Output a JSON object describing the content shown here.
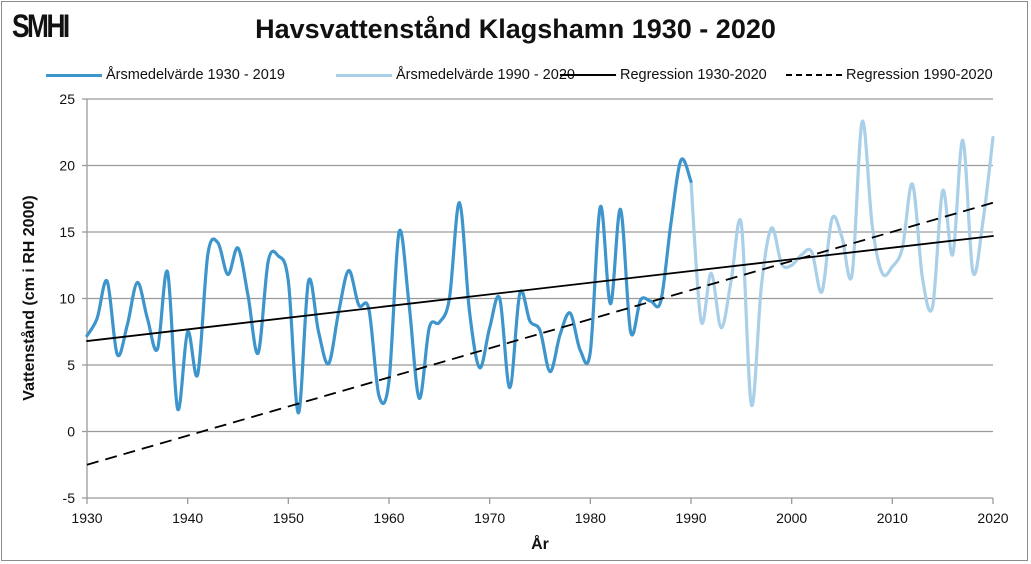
{
  "logo": "SMHI",
  "chart_data": {
    "type": "line",
    "title": "Havsvattenstånd Klagshamn 1930 - 2020",
    "xlabel": "År",
    "ylabel": "Vattenstånd (cm i RH 2000)",
    "xlim": [
      1930,
      2020
    ],
    "ylim": [
      -5,
      25
    ],
    "xticks": [
      1930,
      1940,
      1950,
      1960,
      1970,
      1980,
      1990,
      2000,
      2010,
      2020
    ],
    "yticks": [
      -5,
      0,
      5,
      10,
      15,
      20,
      25
    ],
    "grid": "horizontal",
    "legend_position": "top",
    "series": [
      {
        "name": "Årsmedelvärde 1930 - 2019",
        "color": "#3d95cc",
        "style": "solid",
        "x": [
          1930,
          1931,
          1932,
          1933,
          1934,
          1935,
          1936,
          1937,
          1938,
          1939,
          1940,
          1941,
          1942,
          1943,
          1944,
          1945,
          1946,
          1947,
          1948,
          1949,
          1950,
          1951,
          1952,
          1953,
          1954,
          1955,
          1956,
          1957,
          1958,
          1959,
          1960,
          1961,
          1962,
          1963,
          1964,
          1965,
          1966,
          1967,
          1968,
          1969,
          1970,
          1971,
          1972,
          1973,
          1974,
          1975,
          1976,
          1977,
          1978,
          1979,
          1980,
          1981,
          1982,
          1983,
          1984,
          1985,
          1986,
          1987,
          1988,
          1989,
          1990
        ],
        "y": [
          7.2,
          8.5,
          11.3,
          5.8,
          8.0,
          11.2,
          8.5,
          6.2,
          12.0,
          1.7,
          7.5,
          4.3,
          13.3,
          14.2,
          11.8,
          13.8,
          10.2,
          5.9,
          12.8,
          13.2,
          11.3,
          1.4,
          11.3,
          7.5,
          5.1,
          9.0,
          12.1,
          9.5,
          9.2,
          2.7,
          3.8,
          15.0,
          9.5,
          2.5,
          7.8,
          8.2,
          10.0,
          17.2,
          9.0,
          4.8,
          7.8,
          10.0,
          3.3,
          10.4,
          8.3,
          7.6,
          4.5,
          7.3,
          8.9,
          6.1,
          6.0,
          16.9,
          9.6,
          16.7,
          7.5,
          9.9,
          9.8,
          9.8,
          15.6,
          20.4,
          18.8
        ]
      },
      {
        "name": "Årsmedelvärde 1990 - 2020",
        "color": "#a9d0e8",
        "style": "solid",
        "x": [
          1990,
          1991,
          1992,
          1993,
          1994,
          1995,
          1996,
          1997,
          1998,
          1999,
          2000,
          2001,
          2002,
          2003,
          2004,
          2005,
          2006,
          2007,
          2008,
          2009,
          2010,
          2011,
          2012,
          2013,
          2014,
          2015,
          2016,
          2017,
          2018,
          2019,
          2020
        ],
        "y": [
          18.8,
          8.3,
          11.9,
          7.8,
          11.4,
          15.6,
          2.0,
          11.0,
          15.3,
          12.6,
          12.5,
          13.3,
          13.5,
          10.5,
          16.0,
          14.6,
          11.8,
          23.3,
          15.5,
          11.9,
          12.4,
          13.8,
          18.6,
          11.5,
          9.4,
          18.1,
          13.3,
          21.9,
          12.0,
          15.8,
          22.1
        ]
      },
      {
        "name": "Regression 1930-2020",
        "color": "#000000",
        "style": "solid",
        "x": [
          1930,
          2020
        ],
        "y": [
          6.8,
          14.7
        ]
      },
      {
        "name": "Regression 1990-2020",
        "color": "#000000",
        "style": "dashed",
        "x": [
          1930,
          2020
        ],
        "y": [
          -2.5,
          17.2
        ]
      }
    ]
  }
}
